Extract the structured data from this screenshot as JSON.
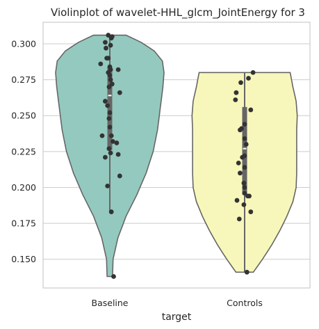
{
  "colors": {
    "background": "#ffffff",
    "grid": "#cccccc",
    "violin_edge": "#666666",
    "point": "#333333",
    "box": "#666666",
    "median": "#ffffff"
  },
  "chart_data": {
    "type": "violin",
    "title": "Violinplot of wavelet-HHL_glcm_JointEnergy for 3",
    "xlabel": "target",
    "ylabel": "",
    "ylim": [
      0.13,
      0.315
    ],
    "yticks": [
      0.15,
      0.175,
      0.2,
      0.225,
      0.25,
      0.275,
      0.3
    ],
    "ytick_labels": [
      "0.150",
      "0.175",
      "0.200",
      "0.225",
      "0.250",
      "0.275",
      "0.300"
    ],
    "categories": [
      "Baseline",
      "Controls"
    ],
    "series": [
      {
        "name": "Baseline",
        "color": "#94c9bf",
        "min": 0.138,
        "max": 0.306,
        "q1": 0.226,
        "median": 0.264,
        "q3": 0.284,
        "whisker_low": 0.183,
        "whisker_high": 0.306,
        "density_profile": [
          [
            0.138,
            0.05
          ],
          [
            0.15,
            0.06
          ],
          [
            0.165,
            0.15
          ],
          [
            0.18,
            0.3
          ],
          [
            0.195,
            0.5
          ],
          [
            0.21,
            0.67
          ],
          [
            0.225,
            0.8
          ],
          [
            0.24,
            0.88
          ],
          [
            0.255,
            0.93
          ],
          [
            0.27,
            0.98
          ],
          [
            0.28,
            1.0
          ],
          [
            0.288,
            0.97
          ],
          [
            0.295,
            0.82
          ],
          [
            0.301,
            0.58
          ],
          [
            0.306,
            0.3
          ]
        ],
        "points": [
          [
            -0.02,
            0.306
          ],
          [
            0.03,
            0.305
          ],
          [
            0.02,
            0.304
          ],
          [
            -0.06,
            0.301
          ],
          [
            0.01,
            0.299
          ],
          [
            -0.05,
            0.297
          ],
          [
            -0.04,
            0.29
          ],
          [
            -0.02,
            0.29
          ],
          [
            -0.12,
            0.286
          ],
          [
            0.0,
            0.284
          ],
          [
            0.11,
            0.282
          ],
          [
            0.01,
            0.282
          ],
          [
            -0.02,
            0.28
          ],
          [
            0.0,
            0.278
          ],
          [
            0.01,
            0.275
          ],
          [
            0.03,
            0.272
          ],
          [
            -0.01,
            0.27
          ],
          [
            0.13,
            0.266
          ],
          [
            -0.06,
            0.26
          ],
          [
            -0.03,
            0.257
          ],
          [
            0.0,
            0.252
          ],
          [
            -0.01,
            0.248
          ],
          [
            0.0,
            0.242
          ],
          [
            -0.1,
            0.236
          ],
          [
            0.02,
            0.236
          ],
          [
            0.04,
            0.232
          ],
          [
            0.09,
            0.231
          ],
          [
            -0.01,
            0.227
          ],
          [
            0.01,
            0.224
          ],
          [
            0.11,
            0.223
          ],
          [
            -0.06,
            0.221
          ],
          [
            0.13,
            0.208
          ],
          [
            -0.03,
            0.201
          ],
          [
            0.02,
            0.183
          ],
          [
            0.05,
            0.138
          ]
        ]
      },
      {
        "name": "Controls",
        "color": "#f7f7bb",
        "min": 0.141,
        "max": 0.28,
        "q1": 0.195,
        "median": 0.227,
        "q3": 0.256,
        "whisker_low": 0.141,
        "whisker_high": 0.28,
        "density_profile": [
          [
            0.141,
            0.16
          ],
          [
            0.15,
            0.33
          ],
          [
            0.16,
            0.5
          ],
          [
            0.17,
            0.65
          ],
          [
            0.18,
            0.78
          ],
          [
            0.19,
            0.89
          ],
          [
            0.2,
            0.95
          ],
          [
            0.21,
            0.96
          ],
          [
            0.22,
            0.96
          ],
          [
            0.23,
            0.96
          ],
          [
            0.24,
            0.96
          ],
          [
            0.25,
            0.97
          ],
          [
            0.26,
            0.95
          ],
          [
            0.27,
            0.89
          ],
          [
            0.28,
            0.84
          ]
        ],
        "points": [
          [
            0.11,
            0.28
          ],
          [
            0.05,
            0.276
          ],
          [
            -0.05,
            0.273
          ],
          [
            -0.11,
            0.266
          ],
          [
            -0.12,
            0.261
          ],
          [
            0.08,
            0.254
          ],
          [
            0.0,
            0.244
          ],
          [
            -0.04,
            0.241
          ],
          [
            -0.06,
            0.24
          ],
          [
            0.0,
            0.234
          ],
          [
            0.02,
            0.23
          ],
          [
            0.0,
            0.222
          ],
          [
            -0.03,
            0.221
          ],
          [
            -0.08,
            0.217
          ],
          [
            0.0,
            0.214
          ],
          [
            -0.06,
            0.21
          ],
          [
            -0.01,
            0.203
          ],
          [
            0.0,
            0.2
          ],
          [
            0.0,
            0.196
          ],
          [
            0.06,
            0.194
          ],
          [
            0.04,
            0.194
          ],
          [
            -0.1,
            0.191
          ],
          [
            -0.01,
            0.188
          ],
          [
            0.08,
            0.183
          ],
          [
            -0.07,
            0.178
          ],
          [
            0.03,
            0.141
          ]
        ]
      }
    ]
  }
}
